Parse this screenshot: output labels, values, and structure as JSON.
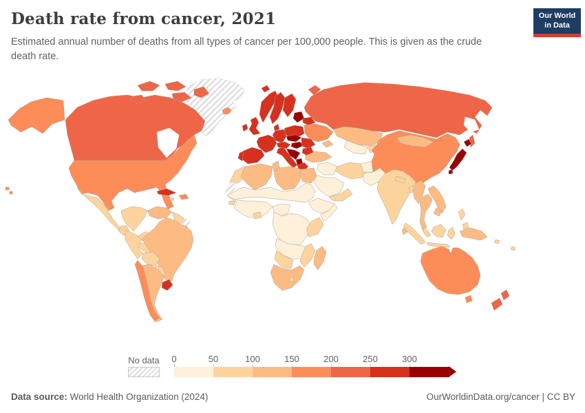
{
  "header": {
    "title": "Death rate from cancer, 2021",
    "subtitle": "Estimated annual number of deaths from all types of cancer per 100,000 people. This is given as the crude death rate.",
    "logo": {
      "line1": "Our World",
      "line2": "in Data",
      "bg": "#1d3d63",
      "accent": "#d93a32"
    }
  },
  "legend": {
    "no_data_label": "No data",
    "ticks": [
      "0",
      "50",
      "100",
      "150",
      "200",
      "250",
      "300"
    ]
  },
  "footer": {
    "source_label": "Data source:",
    "source_text": " World Health Organization (2024)",
    "credit_text": "OurWorldinData.org/cancer | CC BY"
  },
  "colors": {
    "title": "#3d3d3d",
    "text_gray": "#5f5f5f"
  },
  "chart_data": {
    "type": "choropleth-map",
    "title": "Death rate from cancer, 2021",
    "metric": "Deaths from all types of cancer per 100,000 people (crude death rate)",
    "year": 2021,
    "legend_position": "bottom",
    "scale_range": [
      0,
      300
    ],
    "bins": [
      {
        "label": "0-50",
        "color": "#fef0d9"
      },
      {
        "label": "50-100",
        "color": "#fdd49e"
      },
      {
        "label": "100-150",
        "color": "#fdbb84"
      },
      {
        "label": "150-200",
        "color": "#fc8d59"
      },
      {
        "label": "200-250",
        "color": "#ef6548"
      },
      {
        "label": "250-300",
        "color": "#d7301f"
      },
      {
        "label": "300+",
        "color": "#990000"
      },
      {
        "label": "no-data",
        "color": "hatch"
      }
    ],
    "regions": [
      {
        "name": "canada",
        "bin": "200-250"
      },
      {
        "name": "greenland",
        "bin": "no-data"
      },
      {
        "name": "united-states",
        "bin": "150-200"
      },
      {
        "name": "mexico",
        "bin": "50-100"
      },
      {
        "name": "central-america",
        "bin": "50-100"
      },
      {
        "name": "cuba",
        "bin": "250-300"
      },
      {
        "name": "hispaniola",
        "bin": "150-200"
      },
      {
        "name": "jamaica",
        "bin": "50-100"
      },
      {
        "name": "colombia",
        "bin": "50-100"
      },
      {
        "name": "venezuela",
        "bin": "100-150"
      },
      {
        "name": "guyana-suriname",
        "bin": "50-100"
      },
      {
        "name": "french-guiana",
        "bin": "no-data"
      },
      {
        "name": "ecuador",
        "bin": "50-100"
      },
      {
        "name": "peru",
        "bin": "50-100"
      },
      {
        "name": "brazil",
        "bin": "100-150"
      },
      {
        "name": "bolivia",
        "bin": "50-100"
      },
      {
        "name": "paraguay",
        "bin": "50-100"
      },
      {
        "name": "chile",
        "bin": "150-200"
      },
      {
        "name": "argentina",
        "bin": "100-150"
      },
      {
        "name": "uruguay",
        "bin": "250-300"
      },
      {
        "name": "iceland",
        "bin": "150-200"
      },
      {
        "name": "ireland",
        "bin": "250-300"
      },
      {
        "name": "united-kingdom",
        "bin": "250-300"
      },
      {
        "name": "norway",
        "bin": "250-300"
      },
      {
        "name": "sweden",
        "bin": "250-300"
      },
      {
        "name": "finland",
        "bin": "250-300"
      },
      {
        "name": "denmark",
        "bin": "250-300"
      },
      {
        "name": "baltic-states",
        "bin": "300+"
      },
      {
        "name": "poland",
        "bin": "250-300"
      },
      {
        "name": "germany",
        "bin": "250-300"
      },
      {
        "name": "france",
        "bin": "250-300"
      },
      {
        "name": "spain",
        "bin": "250-300"
      },
      {
        "name": "portugal",
        "bin": "250-300"
      },
      {
        "name": "switzerland-austria",
        "bin": "250-300"
      },
      {
        "name": "italy",
        "bin": "250-300"
      },
      {
        "name": "czechia-slovakia",
        "bin": "300+"
      },
      {
        "name": "hungary",
        "bin": "300+"
      },
      {
        "name": "western-balkans",
        "bin": "300+"
      },
      {
        "name": "albania-macedonia",
        "bin": "300+"
      },
      {
        "name": "greece",
        "bin": "250-300"
      },
      {
        "name": "romania",
        "bin": "250-300"
      },
      {
        "name": "bulgaria",
        "bin": "250-300"
      },
      {
        "name": "belarus",
        "bin": "250-300"
      },
      {
        "name": "ukraine",
        "bin": "150-200"
      },
      {
        "name": "russia",
        "bin": "200-250"
      },
      {
        "name": "kazakhstan",
        "bin": "100-150"
      },
      {
        "name": "central-asia",
        "bin": "0-50"
      },
      {
        "name": "kyrgyzstan-tajikistan",
        "bin": "50-100"
      },
      {
        "name": "caucasus",
        "bin": "100-150"
      },
      {
        "name": "turkey",
        "bin": "100-150"
      },
      {
        "name": "syria-iraq",
        "bin": "0-50"
      },
      {
        "name": "saudi-arabia",
        "bin": "0-50"
      },
      {
        "name": "yemen-oman",
        "bin": "50-100"
      },
      {
        "name": "iran",
        "bin": "50-100"
      },
      {
        "name": "afghanistan",
        "bin": "0-50"
      },
      {
        "name": "pakistan",
        "bin": "0-50"
      },
      {
        "name": "india",
        "bin": "50-100"
      },
      {
        "name": "nepal",
        "bin": "50-100"
      },
      {
        "name": "bangladesh",
        "bin": "50-100"
      },
      {
        "name": "sri-lanka",
        "bin": "100-150"
      },
      {
        "name": "china",
        "bin": "150-200"
      },
      {
        "name": "mongolia",
        "bin": "100-150"
      },
      {
        "name": "korea",
        "bin": "150-200"
      },
      {
        "name": "japan",
        "bin": "300+"
      },
      {
        "name": "myanmar",
        "bin": "100-150"
      },
      {
        "name": "thailand",
        "bin": "100-150"
      },
      {
        "name": "laos-vietnam",
        "bin": "100-150"
      },
      {
        "name": "cambodia",
        "bin": "100-150"
      },
      {
        "name": "malaysia",
        "bin": "50-100"
      },
      {
        "name": "indonesia",
        "bin": "50-100"
      },
      {
        "name": "philippines",
        "bin": "50-100"
      },
      {
        "name": "papua-new-guinea",
        "bin": "100-150"
      },
      {
        "name": "pacific-islands",
        "bin": "50-100"
      },
      {
        "name": "australia",
        "bin": "150-200"
      },
      {
        "name": "new-zealand",
        "bin": "200-250"
      },
      {
        "name": "morocco",
        "bin": "50-100"
      },
      {
        "name": "western-sahara",
        "bin": "no-data"
      },
      {
        "name": "algeria",
        "bin": "100-150"
      },
      {
        "name": "tunisia",
        "bin": "100-150"
      },
      {
        "name": "libya",
        "bin": "100-150"
      },
      {
        "name": "egypt",
        "bin": "100-150"
      },
      {
        "name": "sahel",
        "bin": "0-50"
      },
      {
        "name": "west-africa",
        "bin": "0-50"
      },
      {
        "name": "ghana",
        "bin": "50-100"
      },
      {
        "name": "senegal",
        "bin": "50-100"
      },
      {
        "name": "nigeria-cameroon",
        "bin": "0-50"
      },
      {
        "name": "ethiopia",
        "bin": "0-50"
      },
      {
        "name": "somalia",
        "bin": "0-50"
      },
      {
        "name": "central-africa",
        "bin": "0-50"
      },
      {
        "name": "kenya-tanzania",
        "bin": "50-100"
      },
      {
        "name": "angola-zambia",
        "bin": "0-50"
      },
      {
        "name": "mozambique-zimbabwe",
        "bin": "50-100"
      },
      {
        "name": "namibia-botswana",
        "bin": "50-100"
      },
      {
        "name": "south-africa",
        "bin": "100-150"
      },
      {
        "name": "lesotho",
        "bin": "50-100"
      },
      {
        "name": "madagascar",
        "bin": "100-150"
      }
    ]
  }
}
